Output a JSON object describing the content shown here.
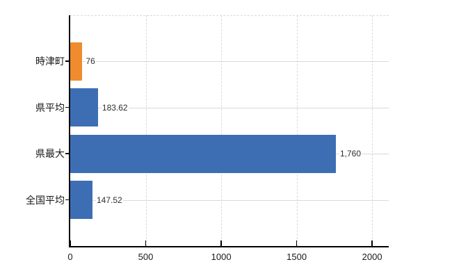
{
  "chart_data": {
    "type": "bar",
    "orientation": "horizontal",
    "title": "",
    "xlabel": "",
    "ylabel": "",
    "categories": [
      "時津町",
      "県平均",
      "県最大",
      "全国平均"
    ],
    "values": [
      76,
      183.62,
      1760,
      147.52
    ],
    "value_labels": [
      "76",
      "183.62",
      "1,760",
      "147.52"
    ],
    "bar_colors": [
      "#ee8c2e",
      "#3d6eb3",
      "#3d6eb3",
      "#3d6eb3"
    ],
    "x_ticks": [
      0,
      500,
      1000,
      1500,
      2000
    ],
    "x_tick_labels": [
      "0",
      "500",
      "1000",
      "1500",
      "2000"
    ],
    "xlim": [
      0,
      2110
    ],
    "grid": true,
    "legend": "none",
    "background": "#ffffff",
    "style": {
      "axis_color": "#000000",
      "grid_color": "#d9d9d9",
      "category_label_color": "#1a1a1a",
      "value_label_color": "#2e2e2e",
      "tick_label_color": "#1a1a1a"
    }
  }
}
